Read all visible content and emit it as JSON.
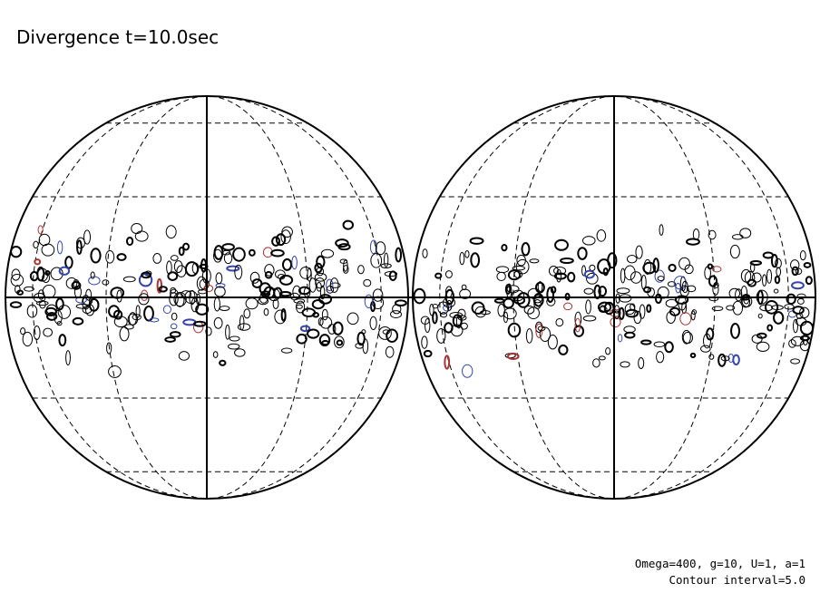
{
  "title": "Divergence t=10.0sec",
  "annotations": [
    "Omega=400, g=10, U=1, a=1",
    "Contour interval=5.0"
  ]
}
